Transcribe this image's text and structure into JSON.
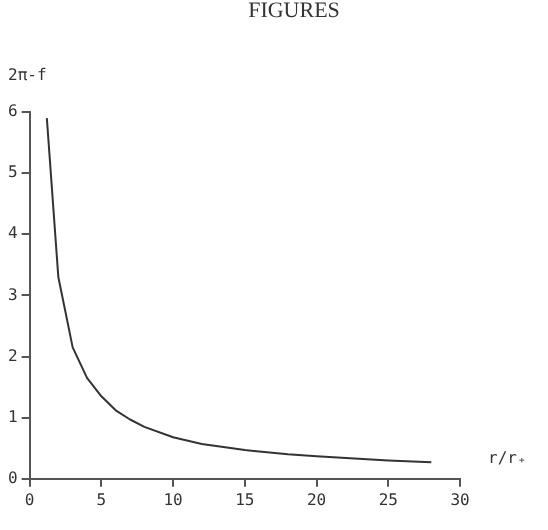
{
  "chart_data": {
    "type": "line",
    "xlabel": "r/r₊",
    "ylabel": "2π-f",
    "annotations": [
      "FIGURES"
    ],
    "x": [
      1.2,
      2,
      3,
      4,
      5,
      6,
      7,
      8,
      10,
      12,
      15,
      18,
      20,
      25,
      28
    ],
    "series": [
      {
        "color": "#333333",
        "values": [
          5.9,
          3.3,
          2.15,
          1.65,
          1.35,
          1.12,
          0.97,
          0.85,
          0.68,
          0.57,
          0.47,
          0.4,
          0.37,
          0.3,
          0.27
        ]
      }
    ],
    "xlim": [
      0,
      30
    ],
    "xticks": [
      0,
      5,
      10,
      15,
      20,
      25,
      30
    ],
    "ylim": [
      0,
      6
    ],
    "yticks": [
      0,
      1,
      2,
      3,
      4,
      5,
      6
    ],
    "grid": false,
    "legend": false,
    "marker": "none",
    "line_style": "solid"
  }
}
